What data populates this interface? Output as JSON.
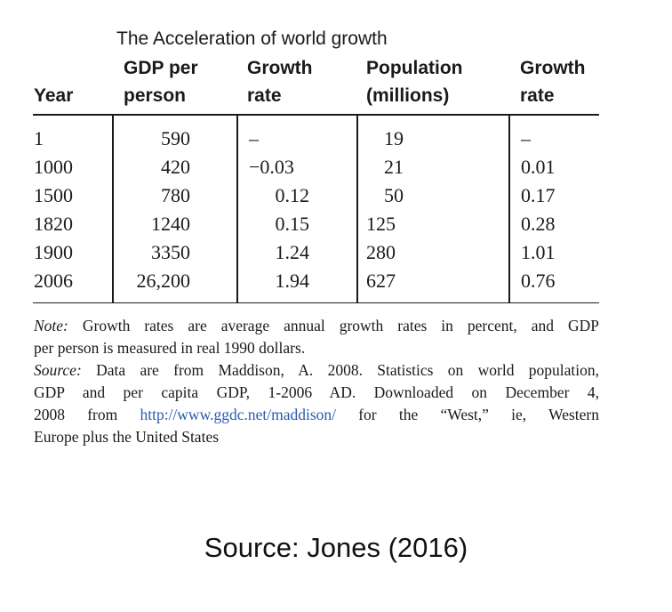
{
  "table": {
    "title": "The Acceleration of world growth",
    "headers": [
      {
        "line1": "",
        "line2": "Year"
      },
      {
        "line1": "GDP per",
        "line2": "person"
      },
      {
        "line1": "Growth",
        "line2": "rate"
      },
      {
        "line1": "Population",
        "line2": "(millions)"
      },
      {
        "line1": "Growth",
        "line2": "rate"
      }
    ],
    "rows": [
      {
        "year": "1",
        "gdp": "590",
        "gdp_growth": "–",
        "population": "19",
        "pop_growth": "–"
      },
      {
        "year": "1000",
        "gdp": "420",
        "gdp_growth": "−0.03",
        "population": "21",
        "pop_growth": "0.01"
      },
      {
        "year": "1500",
        "gdp": "780",
        "gdp_growth": "0.12",
        "population": "50",
        "pop_growth": "0.17"
      },
      {
        "year": "1820",
        "gdp": "1240",
        "gdp_growth": "0.15",
        "population": "125",
        "pop_growth": "0.28"
      },
      {
        "year": "1900",
        "gdp": "3350",
        "gdp_growth": "1.24",
        "population": "280",
        "pop_growth": "1.01"
      },
      {
        "year": "2006",
        "gdp": "26,200",
        "gdp_growth": "1.94",
        "population": "627",
        "pop_growth": "0.76"
      }
    ]
  },
  "note": {
    "note_label": "Note:",
    "note_line1": " Growth rates are average annual growth rates in percent, and GDP",
    "note_line2": "per person is measured in real 1990 dollars.",
    "source_label": "Source:",
    "source_line1": " Data are from Maddison, A. 2008. Statistics on world population,",
    "source_line2": "GDP and per capita GDP, 1-2006 AD. Downloaded on December 4,",
    "source_line3_pre": "2008 from ",
    "source_link": "http://www.ggdc.net/maddison/",
    "source_line3_post": " for the “West,” ie, Western",
    "source_line4": "Europe plus the United States"
  },
  "caption": "Source: Jones (2016)"
}
